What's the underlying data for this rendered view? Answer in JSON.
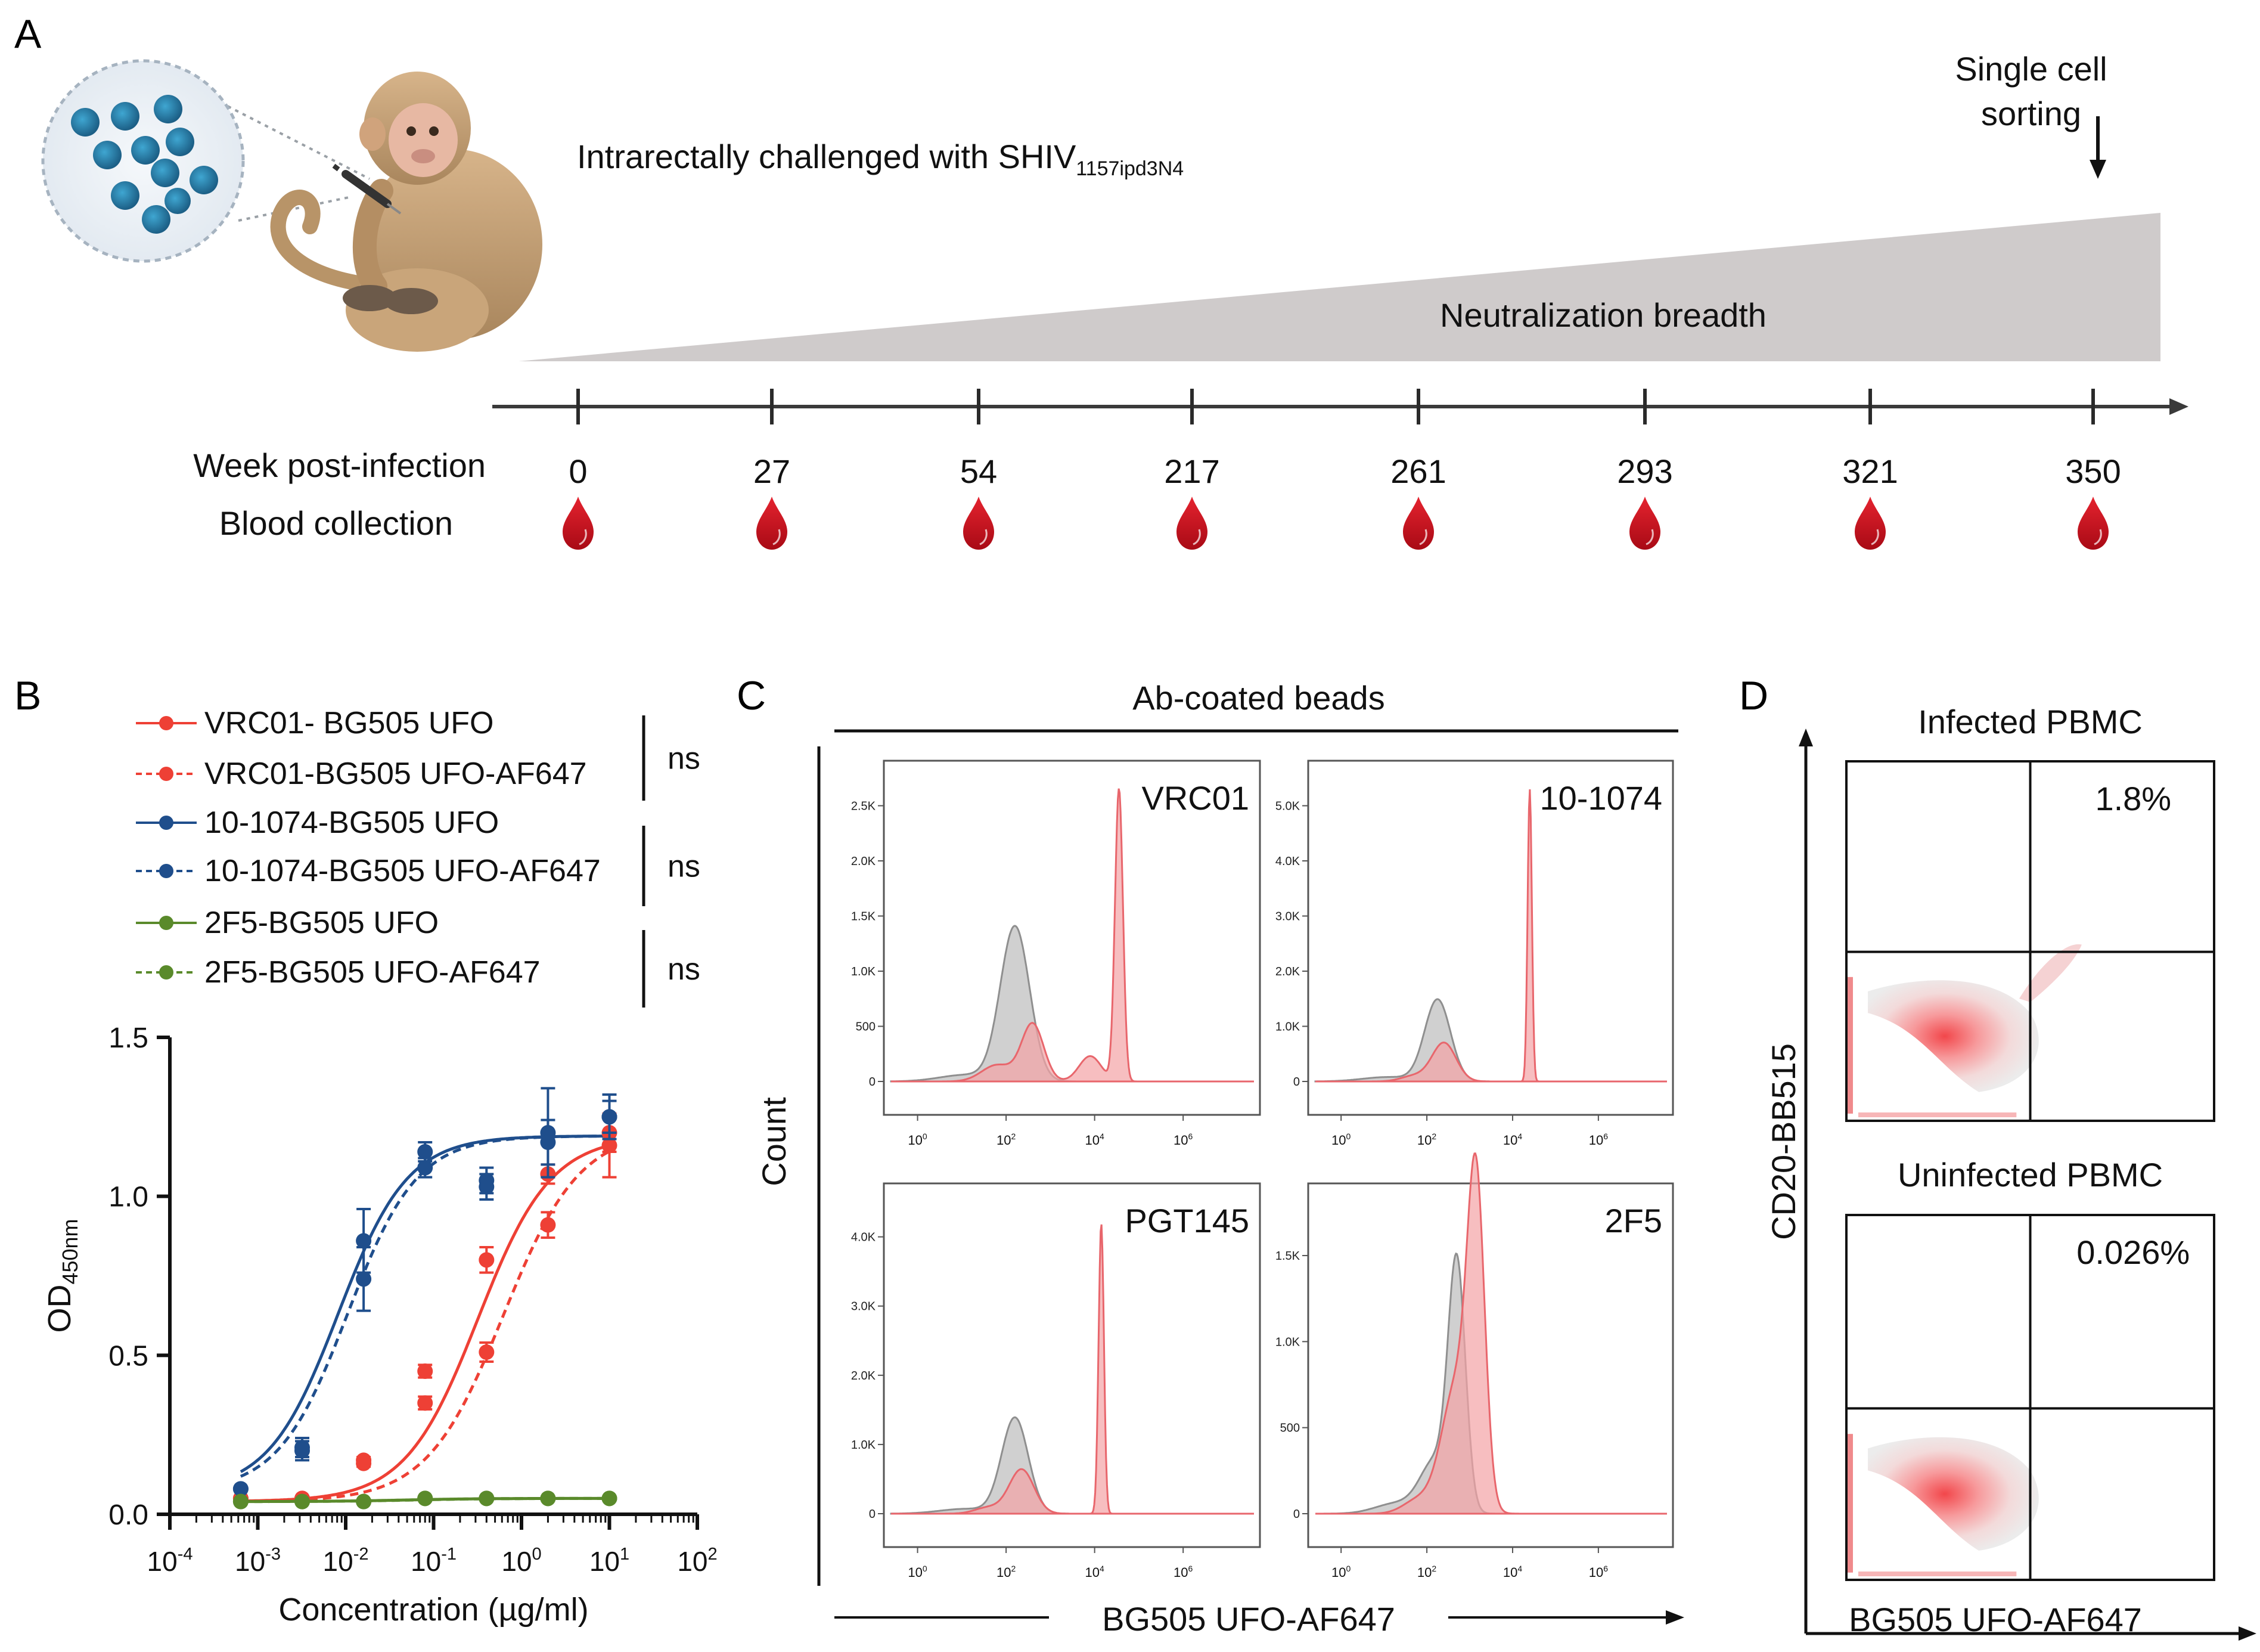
{
  "colors": {
    "red": "#EE4035",
    "blue": "#1F4E8C",
    "green": "#5A8A2B",
    "grey_fill": "#C8C8C8",
    "pink_fill": "#F4A3A5",
    "pink_line": "#E8666C",
    "triangle": "#CFCBCB",
    "blood": "#D0101E",
    "axis": "#222222"
  },
  "panelA": {
    "label": "A",
    "challenge_text": "Intrarectally challenged with SHIV",
    "challenge_sub": "1157ipd3N4",
    "sorting_line1": "Single cell",
    "sorting_line2": "sorting",
    "breadth_label": "Neutralization breadth",
    "week_label": "Week post-infection",
    "blood_label": "Blood collection",
    "weeks": [
      "0",
      "27",
      "54",
      "217",
      "261",
      "293",
      "321",
      "350"
    ]
  },
  "panelB": {
    "label": "B",
    "legend": [
      {
        "name": "VRC01- BG505 UFO",
        "color": "red",
        "style": "solid",
        "icon": "filled-circle-icon"
      },
      {
        "name": "VRC01-BG505 UFO-AF647",
        "color": "red",
        "style": "dashed",
        "icon": "filled-circle-icon"
      },
      {
        "name": "10-1074-BG505 UFO",
        "color": "blue",
        "style": "solid",
        "icon": "filled-circle-icon"
      },
      {
        "name": "10-1074-BG505 UFO-AF647",
        "color": "blue",
        "style": "dashed",
        "icon": "filled-circle-icon"
      },
      {
        "name": "2F5-BG505 UFO",
        "color": "green",
        "style": "solid",
        "icon": "filled-circle-icon"
      },
      {
        "name": "2F5-BG505 UFO-AF647",
        "color": "green",
        "style": "dashed",
        "icon": "filled-circle-icon"
      }
    ],
    "ns": [
      "ns",
      "ns",
      "ns"
    ]
  },
  "chart_data": [
    {
      "panel": "B",
      "type": "scatter",
      "title": "",
      "xlabel": "Concentration (µg/ml)",
      "ylabel_main": "OD",
      "ylabel_sub": "450nm",
      "xscale": "log10",
      "xlim_exp": [
        -4,
        2
      ],
      "xtick_exps": [
        "-4",
        "-3",
        "-2",
        "-1",
        "0",
        "1",
        "2"
      ],
      "xtick_base": "10",
      "ylim": [
        0,
        1.5
      ],
      "ytick_values": [
        0.0,
        0.5,
        1.0,
        1.5
      ],
      "ytick_labels": [
        "0.0",
        "0.5",
        "1.0",
        "1.5"
      ],
      "x_points": [
        0.00064,
        0.0032,
        0.016,
        0.08,
        0.4,
        2,
        10
      ],
      "series": [
        {
          "name": "VRC01- BG505 UFO",
          "color": "red",
          "style": "solid",
          "y": [
            0.05,
            0.05,
            0.17,
            0.45,
            0.8,
            1.07,
            1.2
          ],
          "err": [
            0.0,
            0.0,
            0.01,
            0.02,
            0.04,
            0.03,
            0.06
          ],
          "fit": {
            "bottom": 0.04,
            "top": 1.19,
            "ec50": 0.32,
            "hill": 1.05
          }
        },
        {
          "name": "VRC01-BG505 UFO-AF647",
          "color": "red",
          "style": "dashed",
          "y": [
            0.05,
            0.05,
            0.16,
            0.35,
            0.51,
            0.91,
            1.16
          ],
          "err": [
            0.0,
            0.0,
            0.01,
            0.02,
            0.03,
            0.04,
            0.1
          ],
          "fit": {
            "bottom": 0.04,
            "top": 1.21,
            "ec50": 0.62,
            "hill": 1.0
          }
        },
        {
          "name": "10-1074-BG505 UFO",
          "color": "blue",
          "style": "solid",
          "y": [
            0.08,
            0.21,
            0.86,
            1.14,
            1.05,
            1.2,
            1.25
          ],
          "err": [
            0.0,
            0.03,
            0.1,
            0.03,
            0.04,
            0.14,
            0.07
          ],
          "fit": {
            "bottom": 0.07,
            "top": 1.19,
            "ec50": 0.0082,
            "hill": 1.1
          }
        },
        {
          "name": "10-1074-BG505 UFO-AF647",
          "color": "blue",
          "style": "dashed",
          "y": [
            0.08,
            0.2,
            0.74,
            1.09,
            1.03,
            1.17,
            1.25
          ],
          "err": [
            0.0,
            0.03,
            0.1,
            0.03,
            0.04,
            0.07,
            0.05
          ],
          "fit": {
            "bottom": 0.07,
            "top": 1.19,
            "ec50": 0.0105,
            "hill": 1.1
          }
        },
        {
          "name": "2F5-BG505 UFO",
          "color": "green",
          "style": "solid",
          "y": [
            0.04,
            0.04,
            0.04,
            0.05,
            0.05,
            0.05,
            0.05
          ],
          "err": [
            0,
            0,
            0,
            0,
            0,
            0,
            0
          ],
          "fit": {
            "bottom": 0.04,
            "top": 0.05,
            "ec50": 0.05,
            "hill": 1.0
          }
        },
        {
          "name": "2F5-BG505 UFO-AF647",
          "color": "green",
          "style": "dashed",
          "y": [
            0.04,
            0.04,
            0.04,
            0.05,
            0.05,
            0.05,
            0.05
          ],
          "err": [
            0,
            0,
            0,
            0,
            0,
            0,
            0
          ],
          "fit": {
            "bottom": 0.04,
            "top": 0.05,
            "ec50": 0.06,
            "hill": 1.0
          }
        }
      ]
    },
    {
      "panel": "C",
      "type": "area",
      "title": "Ab-coated beads",
      "xlabel": "BG505 UFO-AF647",
      "ylabel": "Count",
      "xscale": "log10",
      "xlim_exp": [
        -0.6,
        7.6
      ],
      "xtick_exps": [
        "0",
        "2",
        "4",
        "6"
      ],
      "xtick_base": "10",
      "subplots": [
        {
          "name": "VRC01",
          "ymax": 2800,
          "yticks": [
            0,
            500,
            1000,
            1500,
            2000,
            2500
          ],
          "ytick_labels": [
            "0",
            "500",
            "1.0K",
            "1.5K",
            "2.0K",
            "2.5K"
          ],
          "grey": [
            {
              "mu": 2.2,
              "sigma": 0.33,
              "amp": 1400
            },
            {
              "mu": 1.1,
              "sigma": 0.6,
              "amp": 60
            }
          ],
          "pink": [
            {
              "mu": 2.6,
              "sigma": 0.25,
              "amp": 520
            },
            {
              "mu": 4.55,
              "sigma": 0.09,
              "amp": 2650
            },
            {
              "mu": 3.9,
              "sigma": 0.25,
              "amp": 230
            },
            {
              "mu": 1.8,
              "sigma": 0.35,
              "amp": 150
            }
          ]
        },
        {
          "name": "10-1074",
          "ymax": 5600,
          "yticks": [
            0,
            1000,
            2000,
            3000,
            4000,
            5000
          ],
          "ytick_labels": [
            "0",
            "1.0K",
            "2.0K",
            "3.0K",
            "4.0K",
            "5.0K"
          ],
          "grey": [
            {
              "mu": 2.25,
              "sigma": 0.3,
              "amp": 1480
            },
            {
              "mu": 1.1,
              "sigma": 0.6,
              "amp": 80
            }
          ],
          "pink": [
            {
              "mu": 2.4,
              "sigma": 0.28,
              "amp": 700
            },
            {
              "mu": 4.4,
              "sigma": 0.05,
              "amp": 5300
            },
            {
              "mu": 1.7,
              "sigma": 0.3,
              "amp": 100
            }
          ]
        },
        {
          "name": "PGT145",
          "ymax": 4600,
          "yticks": [
            0,
            1000,
            2000,
            3000,
            4000
          ],
          "ytick_labels": [
            "0",
            "1.0K",
            "2.0K",
            "3.0K",
            "4.0K"
          ],
          "grey": [
            {
              "mu": 2.2,
              "sigma": 0.3,
              "amp": 1380
            },
            {
              "mu": 1.1,
              "sigma": 0.6,
              "amp": 70
            }
          ],
          "pink": [
            {
              "mu": 2.35,
              "sigma": 0.28,
              "amp": 640
            },
            {
              "mu": 4.15,
              "sigma": 0.06,
              "amp": 4200
            },
            {
              "mu": 1.6,
              "sigma": 0.3,
              "amp": 90
            }
          ]
        },
        {
          "name": "2F5",
          "ymax": 1850,
          "yticks": [
            0,
            500,
            1000,
            1500
          ],
          "ytick_labels": [
            "0",
            "500",
            "1.0K",
            "1.5K"
          ],
          "grey": [
            {
              "mu": 2.7,
              "sigma": 0.2,
              "amp": 1400
            },
            {
              "mu": 2.2,
              "sigma": 0.35,
              "amp": 300
            },
            {
              "mu": 1.3,
              "sigma": 0.5,
              "amp": 60
            }
          ],
          "pink": [
            {
              "mu": 3.15,
              "sigma": 0.2,
              "amp": 1750
            },
            {
              "mu": 2.7,
              "sigma": 0.35,
              "amp": 750
            },
            {
              "mu": 1.8,
              "sigma": 0.35,
              "amp": 80
            }
          ]
        }
      ]
    },
    {
      "panel": "D",
      "type": "heatmap",
      "xlabel": "BG505 UFO-AF647",
      "ylabel": "CD20-BB515",
      "subplots": [
        {
          "name": "Infected PBMC",
          "percent": "1.8%"
        },
        {
          "name": "Uninfected PBMC",
          "percent": "0.026%"
        }
      ]
    }
  ]
}
